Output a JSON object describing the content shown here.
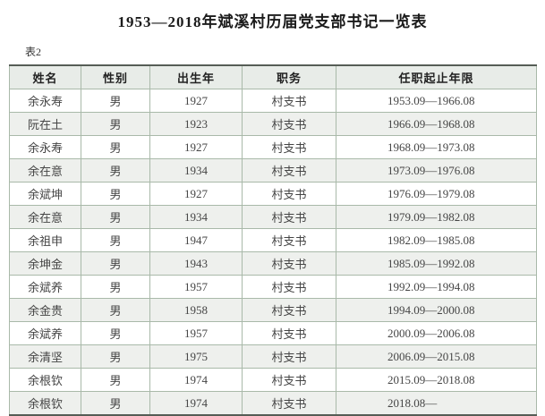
{
  "title": "1953—2018年斌溪村历届党支部书记一览表",
  "table_label": "表2",
  "colors": {
    "border_light": "#a9b9a9",
    "border_dark": "#565d56",
    "header_bg": "#e8ece8",
    "stripe_bg": "#eef0ed",
    "text": "#454545",
    "header_text": "#222222",
    "title_text": "#1b1b1b"
  },
  "table": {
    "headers": [
      "姓名",
      "性别",
      "出生年",
      "职务",
      "任职起止年限"
    ],
    "rows": [
      {
        "name": "余永寿",
        "gender": "男",
        "birth_year": "1927",
        "position": "村支书",
        "term": "1953.09—1966.08"
      },
      {
        "name": "阮在土",
        "gender": "男",
        "birth_year": "1923",
        "position": "村支书",
        "term": "1966.09—1968.08"
      },
      {
        "name": "余永寿",
        "gender": "男",
        "birth_year": "1927",
        "position": "村支书",
        "term": "1968.09—1973.08"
      },
      {
        "name": "余在意",
        "gender": "男",
        "birth_year": "1934",
        "position": "村支书",
        "term": "1973.09—1976.08"
      },
      {
        "name": "余斌坤",
        "gender": "男",
        "birth_year": "1927",
        "position": "村支书",
        "term": "1976.09—1979.08"
      },
      {
        "name": "余在意",
        "gender": "男",
        "birth_year": "1934",
        "position": "村支书",
        "term": "1979.09—1982.08"
      },
      {
        "name": "余祖申",
        "gender": "男",
        "birth_year": "1947",
        "position": "村支书",
        "term": "1982.09—1985.08"
      },
      {
        "name": "余坤金",
        "gender": "男",
        "birth_year": "1943",
        "position": "村支书",
        "term": "1985.09—1992.08"
      },
      {
        "name": "余斌养",
        "gender": "男",
        "birth_year": "1957",
        "position": "村支书",
        "term": "1992.09—1994.08"
      },
      {
        "name": "余金贵",
        "gender": "男",
        "birth_year": "1958",
        "position": "村支书",
        "term": "1994.09—2000.08"
      },
      {
        "name": "余斌养",
        "gender": "男",
        "birth_year": "1957",
        "position": "村支书",
        "term": "2000.09—2006.08"
      },
      {
        "name": "余清坚",
        "gender": "男",
        "birth_year": "1975",
        "position": "村支书",
        "term": "2006.09—2015.08"
      },
      {
        "name": "余根钦",
        "gender": "男",
        "birth_year": "1974",
        "position": "村支书",
        "term": "2015.09—2018.08"
      },
      {
        "name": "余根钦",
        "gender": "男",
        "birth_year": "1974",
        "position": "村支书",
        "term": "2018.08—"
      }
    ]
  }
}
